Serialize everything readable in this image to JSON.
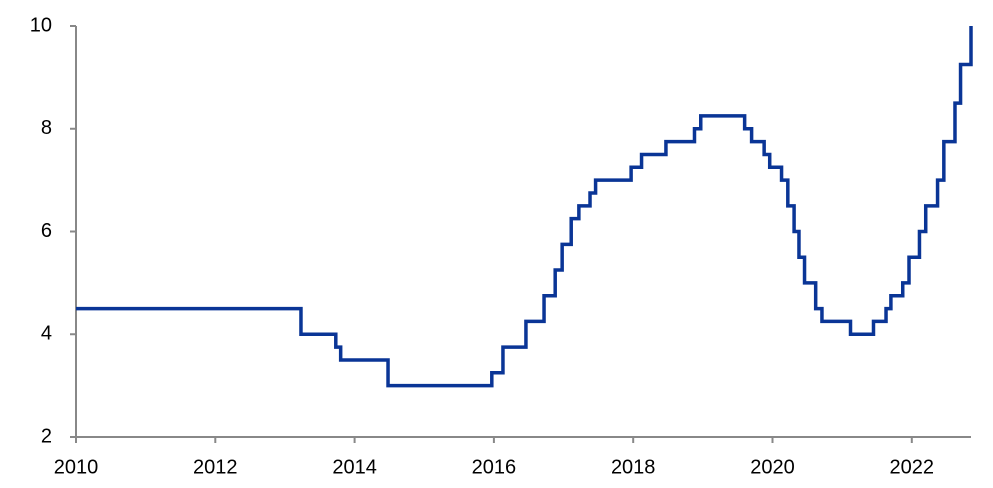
{
  "chart_data": {
    "type": "line",
    "drawstyle": "steps-post",
    "x": [
      2010.0,
      2013.23,
      2013.73,
      2013.8,
      2014.48,
      2015.97,
      2016.13,
      2016.46,
      2016.72,
      2016.88,
      2016.98,
      2017.11,
      2017.22,
      2017.38,
      2017.46,
      2017.97,
      2018.12,
      2018.47,
      2018.88,
      2018.97,
      2019.6,
      2019.7,
      2019.88,
      2019.96,
      2020.13,
      2020.22,
      2020.31,
      2020.38,
      2020.46,
      2020.62,
      2020.71,
      2021.12,
      2021.45,
      2021.63,
      2021.7,
      2021.87,
      2021.96,
      2022.11,
      2022.2,
      2022.37,
      2022.46,
      2022.62,
      2022.7,
      2022.85
    ],
    "series": [
      {
        "color": "#0a3596",
        "values": [
          4.5,
          4.0,
          3.75,
          3.5,
          3.0,
          3.25,
          3.75,
          4.25,
          4.75,
          5.25,
          5.75,
          6.25,
          6.5,
          6.75,
          7.0,
          7.25,
          7.5,
          7.75,
          8.0,
          8.25,
          8.0,
          7.75,
          7.5,
          7.25,
          7.0,
          6.5,
          6.0,
          5.5,
          5.0,
          4.5,
          4.25,
          4.0,
          4.25,
          4.5,
          4.75,
          5.0,
          5.5,
          6.0,
          6.5,
          7.0,
          7.75,
          8.5,
          9.25,
          10.0
        ]
      }
    ],
    "xlim": [
      2010,
      2022.85
    ],
    "xticks": [
      2010,
      2012,
      2014,
      2016,
      2018,
      2020,
      2022
    ],
    "ylim": [
      2,
      10
    ],
    "yticks": [
      2,
      4,
      6,
      8,
      10
    ],
    "grid": false
  }
}
